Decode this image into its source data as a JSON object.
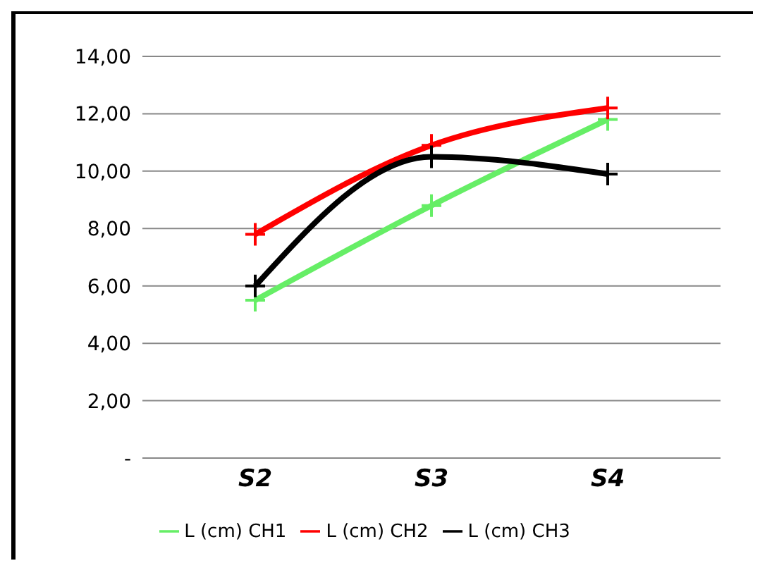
{
  "chart_data": {
    "type": "line",
    "categories": [
      "S2",
      "S3",
      "S4"
    ],
    "series": [
      {
        "name": "L (cm) CH1",
        "color": "#66ee66",
        "values": [
          5.5,
          8.8,
          11.8
        ]
      },
      {
        "name": "L (cm) CH2",
        "color": "#ff0000",
        "values": [
          7.8,
          10.9,
          12.2
        ]
      },
      {
        "name": "L (cm) CH3",
        "color": "#000000",
        "values": [
          6.0,
          10.5,
          9.9
        ]
      }
    ],
    "ylim": [
      0,
      14
    ],
    "yticks": [
      {
        "value": 0,
        "label": "-"
      },
      {
        "value": 2,
        "label": "2,00"
      },
      {
        "value": 4,
        "label": "4,00"
      },
      {
        "value": 6,
        "label": "6,00"
      },
      {
        "value": 8,
        "label": "8,00"
      },
      {
        "value": 10,
        "label": "10,00"
      },
      {
        "value": 12,
        "label": "12,00"
      },
      {
        "value": 14,
        "label": "14,00"
      }
    ],
    "grid": "y",
    "legend": "bottom",
    "marker": "cross"
  }
}
